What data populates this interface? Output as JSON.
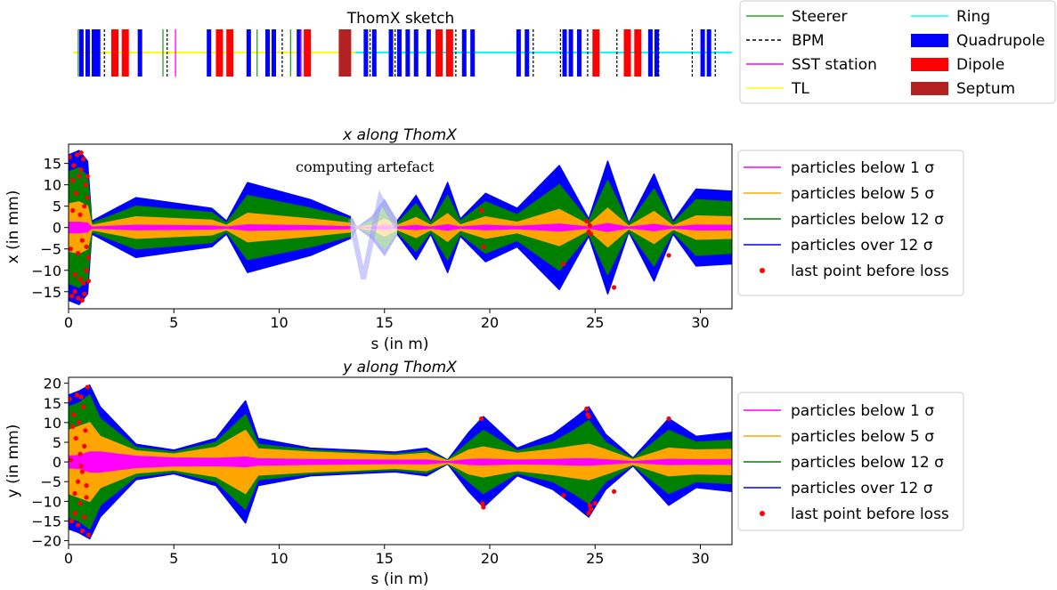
{
  "sketch": {
    "title": "ThomX sketch",
    "legend": [
      {
        "label": "Steerer",
        "kind": "line",
        "color": "#2ca02c"
      },
      {
        "label": "BPM",
        "kind": "dash",
        "color": "#000000"
      },
      {
        "label": "SST station",
        "kind": "line",
        "color": "#ff00ff"
      },
      {
        "label": "TL",
        "kind": "line",
        "color": "#ffff00"
      },
      {
        "label": "Ring",
        "kind": "line",
        "color": "#00ffff"
      },
      {
        "label": "Quadrupole",
        "kind": "patch",
        "color": "#0000ff"
      },
      {
        "label": "Dipole",
        "kind": "patch",
        "color": "#ff0000"
      },
      {
        "label": "Septum",
        "kind": "patch",
        "color": "#b22222"
      }
    ],
    "elements": {
      "tl_range": [
        0,
        13.5
      ],
      "ring_range": [
        13.5,
        31.5
      ],
      "quadrupoles": [
        0.4,
        0.7,
        1.0,
        1.2,
        3.2,
        6.5,
        8.4,
        9.3,
        9.6,
        10.8,
        14.0,
        14.4,
        15.2,
        15.6,
        16.0,
        16.4,
        17.0,
        18.7,
        19.1,
        21.3,
        21.7,
        23.5,
        23.8,
        24.2,
        27.6,
        27.9,
        30.1,
        30.4
      ],
      "dipoles": [
        2.0,
        2.5,
        7.0,
        7.5,
        11.2,
        17.5,
        18.0,
        25.0,
        26.5,
        27.0
      ],
      "septa": [
        13.0
      ],
      "bpms": [
        1.5,
        4.5,
        10.0,
        14.2,
        15.4,
        18.3,
        22.0,
        23.3,
        24.6,
        26.0,
        28.0,
        29.6,
        30.7
      ],
      "steerers": [
        0.25,
        4.3,
        8.8,
        10.4
      ],
      "sst": [
        4.9,
        10.9
      ]
    }
  },
  "chart_data": [
    {
      "type": "line",
      "title": "x along ThomX",
      "xlabel": "s (in m)",
      "ylabel": "x (in mm)",
      "xlim": [
        0,
        31.5
      ],
      "ylim": [
        -19,
        19.5
      ],
      "xticks": [
        0,
        5,
        10,
        15,
        20,
        25,
        30
      ],
      "yticks": [
        -15,
        -10,
        -5,
        0,
        5,
        10,
        15
      ],
      "annotation": {
        "text": "computing artefact",
        "x": 11.0,
        "y": 14,
        "region": [
          13.4,
          15.6
        ]
      },
      "s": [
        0,
        0.5,
        0.9,
        1.1,
        3.2,
        6.8,
        7.5,
        8.5,
        11.5,
        13.4,
        13.7,
        14.4,
        15.0,
        15.6,
        16.5,
        17.2,
        18.0,
        18.6,
        19.8,
        21.3,
        23.3,
        24.7,
        25.6,
        26.6,
        27.8,
        28.7,
        29.8,
        31.5
      ],
      "envelopes": [
        {
          "name": "particles over 12 σ",
          "color": "#0000ff",
          "values": [
            17,
            18,
            15.5,
            1.5,
            7,
            4.5,
            1.5,
            10.5,
            6.5,
            2.5,
            0,
            2.5,
            6.5,
            1.5,
            7.5,
            1.5,
            10.5,
            2,
            8,
            4.5,
            14.5,
            2,
            15.5,
            1,
            12.5,
            1.5,
            9,
            8.5
          ]
        },
        {
          "name": "particles below 12 σ",
          "color": "#008000",
          "values": [
            13,
            14,
            12,
            1,
            5,
            3.5,
            1,
            7.5,
            4.5,
            2,
            0,
            1.5,
            5,
            1,
            5.5,
            1,
            7.5,
            1.5,
            6,
            3,
            10,
            1.5,
            11,
            0.7,
            9,
            1,
            6.5,
            6
          ]
        },
        {
          "name": "particles below 5 σ",
          "color": "#ffa500",
          "values": [
            5.5,
            6,
            5,
            0.5,
            2.5,
            1.7,
            0.5,
            3.3,
            2,
            1,
            0,
            0.5,
            2,
            0.5,
            2.3,
            0.5,
            3.2,
            0.6,
            2.5,
            1.2,
            4.2,
            0.6,
            4.5,
            0.3,
            3.7,
            0.4,
            2.7,
            2.5
          ]
        },
        {
          "name": "particles below 1 σ",
          "color": "#ff00ff",
          "values": [
            1.2,
            1.2,
            1,
            0.1,
            0.5,
            0.35,
            0.1,
            0.6,
            0.4,
            0.2,
            0,
            0.1,
            0.4,
            0.1,
            0.45,
            0.1,
            0.6,
            0.12,
            0.5,
            0.25,
            0.8,
            0.12,
            0.9,
            0.06,
            0.7,
            0.08,
            0.55,
            0.5
          ]
        }
      ],
      "legend": [
        {
          "label": "particles below 1 σ",
          "kind": "line",
          "color": "#ff00ff"
        },
        {
          "label": "particles below 5 σ",
          "kind": "line",
          "color": "#ffa500"
        },
        {
          "label": "particles below 12 σ",
          "kind": "line",
          "color": "#008000"
        },
        {
          "label": "particles over 12 σ",
          "kind": "line",
          "color": "#0000ff"
        },
        {
          "label": "last point before loss",
          "kind": "dot",
          "color": "#ff0000"
        }
      ],
      "losses": [
        [
          0.05,
          16.5
        ],
        [
          0.15,
          -16
        ],
        [
          0.25,
          14.5
        ],
        [
          0.3,
          -15
        ],
        [
          0.4,
          17
        ],
        [
          0.45,
          -16.5
        ],
        [
          0.5,
          12
        ],
        [
          0.55,
          -12
        ],
        [
          0.6,
          17.5
        ],
        [
          0.65,
          -17
        ],
        [
          0.7,
          16
        ],
        [
          0.75,
          -15.5
        ],
        [
          0.8,
          10
        ],
        [
          0.85,
          -10
        ],
        [
          0.9,
          7
        ],
        [
          0.95,
          -7
        ],
        [
          0.35,
          8
        ],
        [
          0.45,
          -6
        ],
        [
          0.55,
          3
        ],
        [
          0.65,
          -3
        ],
        [
          0.75,
          5
        ],
        [
          0.85,
          -4.5
        ],
        [
          0.2,
          11
        ],
        [
          0.3,
          -11
        ],
        [
          0.6,
          13.5
        ],
        [
          0.7,
          -13
        ],
        [
          0.9,
          12
        ],
        [
          0.95,
          -12.5
        ],
        [
          0.1,
          -5
        ],
        [
          0.2,
          4
        ],
        [
          19.6,
          4
        ],
        [
          19.7,
          -4.5
        ],
        [
          23.5,
          -8.5
        ],
        [
          24.6,
          1.5
        ],
        [
          24.7,
          -1
        ],
        [
          24.75,
          0.5
        ],
        [
          24.8,
          -1.5
        ],
        [
          25.9,
          -14
        ],
        [
          28.5,
          -6.5
        ]
      ]
    },
    {
      "type": "line",
      "title": "y along ThomX",
      "xlabel": "s (in m)",
      "ylabel": "y (in mm)",
      "xlim": [
        0,
        31.5
      ],
      "ylim": [
        -21,
        21.5
      ],
      "xticks": [
        0,
        5,
        10,
        15,
        20,
        25,
        30
      ],
      "yticks": [
        -20,
        -15,
        -10,
        -5,
        0,
        5,
        10,
        15,
        20
      ],
      "s": [
        0,
        0.5,
        1.0,
        1.5,
        3.2,
        5.0,
        7.0,
        8.4,
        9.0,
        11.5,
        13.5,
        15.5,
        17.0,
        18.0,
        19.0,
        19.7,
        21.3,
        23.0,
        24.0,
        24.7,
        25.5,
        26.8,
        28.5,
        29.8,
        31.5
      ],
      "envelopes": [
        {
          "name": "particles over 12 σ",
          "color": "#0000ff",
          "values": [
            17,
            18,
            19.5,
            14,
            4.5,
            3,
            6,
            15.5,
            6,
            3.5,
            3,
            2.5,
            3.5,
            0.5,
            7.5,
            11.5,
            3.5,
            7,
            11,
            14,
            7,
            1,
            11,
            6.5,
            7.5
          ]
        },
        {
          "name": "particles below 12 σ",
          "color": "#008000",
          "values": [
            14,
            15,
            17,
            11,
            3.7,
            2.5,
            5,
            12,
            4.5,
            3,
            2.5,
            2,
            2.8,
            0.4,
            5,
            8,
            2.8,
            5,
            8,
            10.5,
            5,
            0.8,
            8,
            5,
            5.5
          ]
        },
        {
          "name": "particles below 5 σ",
          "color": "#ffa500",
          "values": [
            8,
            9,
            10,
            6.5,
            2.8,
            2,
            3.7,
            8,
            3.3,
            2.5,
            2.1,
            1.6,
            2.2,
            0.3,
            3,
            3.8,
            2.2,
            3.2,
            4,
            4.5,
            3.1,
            0.6,
            3.5,
            3,
            3.2
          ]
        },
        {
          "name": "particles below 1 σ",
          "color": "#ff00ff",
          "values": [
            1.5,
            1.6,
            2.5,
            2.5,
            1.4,
            1,
            0.9,
            1.2,
            0.8,
            0.6,
            0.5,
            0.4,
            0.45,
            0.05,
            0.6,
            0.7,
            0.45,
            0.6,
            0.75,
            0.8,
            0.55,
            0.1,
            0.65,
            0.55,
            0.6
          ]
        }
      ],
      "legend": [
        {
          "label": "particles below 1 σ",
          "kind": "line",
          "color": "#ff00ff"
        },
        {
          "label": "particles below 5 σ",
          "kind": "line",
          "color": "#ffa500"
        },
        {
          "label": "particles below 12 σ",
          "kind": "line",
          "color": "#008000"
        },
        {
          "label": "particles over 12 σ",
          "kind": "line",
          "color": "#0000ff"
        },
        {
          "label": "last point before loss",
          "kind": "dot",
          "color": "#ff0000"
        }
      ],
      "losses": [
        [
          0.05,
          16
        ],
        [
          0.15,
          -15
        ],
        [
          0.25,
          12
        ],
        [
          0.3,
          -13
        ],
        [
          0.4,
          17
        ],
        [
          0.45,
          -16
        ],
        [
          0.5,
          10
        ],
        [
          0.55,
          -10.5
        ],
        [
          0.6,
          16.5
        ],
        [
          0.65,
          -17.5
        ],
        [
          0.7,
          14
        ],
        [
          0.75,
          -14
        ],
        [
          0.8,
          8
        ],
        [
          0.85,
          -9
        ],
        [
          0.9,
          19
        ],
        [
          0.95,
          -18.5
        ],
        [
          0.35,
          6
        ],
        [
          0.45,
          -5
        ],
        [
          0.55,
          2
        ],
        [
          0.65,
          -2.5
        ],
        [
          0.75,
          4
        ],
        [
          0.85,
          -6
        ],
        [
          0.2,
          9
        ],
        [
          0.3,
          -8
        ],
        [
          0.1,
          0.5
        ],
        [
          0.6,
          -1
        ],
        [
          19.6,
          11
        ],
        [
          19.65,
          -10.5
        ],
        [
          19.7,
          -11.5
        ],
        [
          23.5,
          -8.5
        ],
        [
          24.6,
          13.5
        ],
        [
          24.65,
          12
        ],
        [
          24.7,
          11.5
        ],
        [
          24.75,
          -11
        ],
        [
          24.8,
          -12
        ],
        [
          24.7,
          -13
        ],
        [
          25.0,
          -10.5
        ],
        [
          25.9,
          -7.5
        ],
        [
          28.5,
          11
        ]
      ]
    }
  ]
}
